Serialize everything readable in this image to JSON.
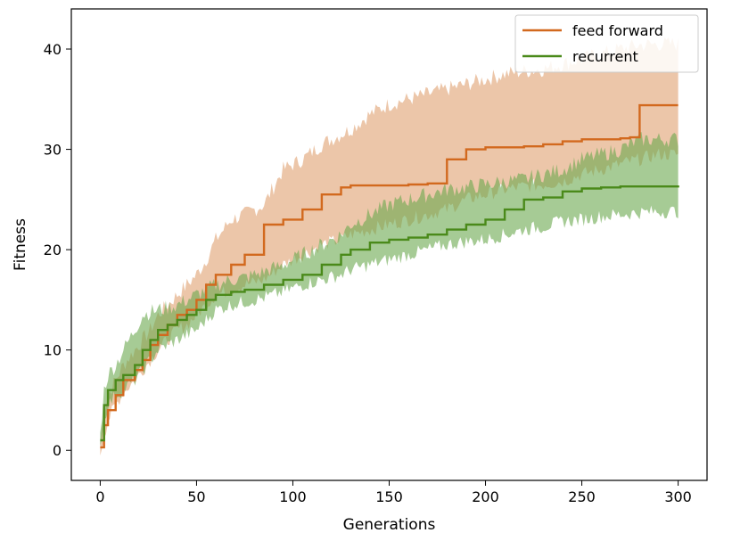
{
  "chart_data": {
    "type": "line",
    "title": "",
    "xlabel": "Generations",
    "ylabel": "Fitness",
    "xlim": [
      -15,
      315
    ],
    "ylim": [
      -3,
      44
    ],
    "xticks": [
      0,
      50,
      100,
      150,
      200,
      250,
      300
    ],
    "yticks": [
      0,
      10,
      20,
      30,
      40
    ],
    "grid": false,
    "legend_position": "top-right",
    "series": [
      {
        "name": "feed forward",
        "color": "#d2691e",
        "band_color": "#e0a070",
        "x": [
          0,
          2,
          4,
          8,
          12,
          18,
          22,
          26,
          30,
          35,
          40,
          45,
          50,
          55,
          60,
          68,
          75,
          85,
          95,
          105,
          115,
          125,
          130,
          140,
          150,
          160,
          170,
          180,
          190,
          200,
          210,
          220,
          230,
          240,
          250,
          260,
          270,
          275,
          280,
          290,
          300
        ],
        "mean": [
          0.3,
          2.5,
          4.0,
          5.5,
          7.0,
          8.0,
          9.0,
          10.5,
          11.5,
          12.5,
          13.5,
          14.0,
          15.0,
          16.5,
          17.5,
          18.5,
          19.5,
          22.5,
          23.0,
          24.0,
          25.5,
          26.2,
          26.4,
          26.4,
          26.4,
          26.5,
          26.6,
          29.0,
          30.0,
          30.2,
          30.2,
          30.3,
          30.5,
          30.8,
          31.0,
          31.0,
          31.1,
          31.2,
          34.4,
          34.4,
          34.4
        ],
        "upper": [
          0.8,
          4.0,
          5.5,
          7.0,
          8.5,
          10.0,
          11.0,
          12.0,
          13.5,
          14.5,
          15.5,
          16.5,
          17.5,
          19.0,
          21.0,
          23.0,
          23.5,
          24.5,
          28.0,
          29.0,
          30.5,
          31.5,
          32.0,
          33.5,
          34.5,
          35.0,
          35.5,
          36.0,
          36.5,
          37.0,
          37.5,
          37.8,
          38.0,
          38.5,
          39.0,
          39.5,
          40.0,
          40.2,
          40.4,
          40.5,
          40.5
        ],
        "lower": [
          -0.3,
          1.5,
          3.0,
          4.5,
          5.8,
          7.0,
          8.0,
          9.0,
          10.0,
          11.0,
          12.0,
          12.5,
          13.5,
          14.5,
          15.5,
          16.0,
          16.5,
          17.0,
          18.5,
          19.5,
          20.5,
          21.0,
          21.5,
          22.0,
          22.5,
          23.0,
          23.5,
          24.0,
          25.0,
          25.5,
          26.0,
          26.3,
          26.5,
          26.8,
          27.5,
          28.0,
          28.5,
          28.8,
          29.0,
          29.5,
          29.5
        ]
      },
      {
        "name": "recurrent",
        "color": "#4a8a1a",
        "band_color": "#6aa84f",
        "x": [
          0,
          2,
          4,
          8,
          12,
          18,
          22,
          26,
          30,
          35,
          40,
          45,
          50,
          55,
          60,
          68,
          75,
          85,
          95,
          105,
          115,
          125,
          130,
          140,
          150,
          160,
          170,
          180,
          190,
          200,
          210,
          220,
          230,
          240,
          250,
          260,
          270,
          275,
          280,
          290,
          300
        ],
        "mean": [
          1.0,
          4.5,
          6.0,
          7.0,
          7.5,
          8.5,
          10.0,
          11.0,
          12.0,
          12.5,
          13.0,
          13.5,
          14.0,
          15.0,
          15.5,
          15.8,
          16.0,
          16.5,
          17.0,
          17.5,
          18.5,
          19.5,
          20.0,
          20.7,
          21.0,
          21.2,
          21.5,
          22.0,
          22.5,
          23.0,
          24.0,
          25.0,
          25.2,
          25.8,
          26.1,
          26.2,
          26.3,
          26.3,
          26.3,
          26.3,
          26.4
        ],
        "upper": [
          1.5,
          6.0,
          7.5,
          8.5,
          10.0,
          12.0,
          13.5,
          13.8,
          14.0,
          14.2,
          14.5,
          15.0,
          15.5,
          16.0,
          16.5,
          17.0,
          17.2,
          17.8,
          18.5,
          19.5,
          20.5,
          21.5,
          22.5,
          23.5,
          24.5,
          25.0,
          25.5,
          26.0,
          26.2,
          26.5,
          26.8,
          27.0,
          27.5,
          28.0,
          29.0,
          29.5,
          30.0,
          30.5,
          31.0,
          31.0,
          31.0
        ],
        "lower": [
          0.5,
          3.0,
          4.5,
          5.5,
          6.0,
          7.0,
          8.0,
          9.0,
          10.0,
          10.5,
          11.0,
          11.5,
          12.0,
          13.0,
          14.0,
          14.5,
          14.8,
          15.2,
          15.8,
          16.5,
          17.0,
          17.5,
          18.0,
          18.5,
          19.0,
          19.5,
          20.0,
          20.5,
          20.8,
          21.0,
          21.5,
          22.0,
          22.3,
          22.8,
          23.0,
          23.3,
          23.5,
          23.6,
          23.7,
          23.8,
          23.8
        ]
      }
    ]
  }
}
